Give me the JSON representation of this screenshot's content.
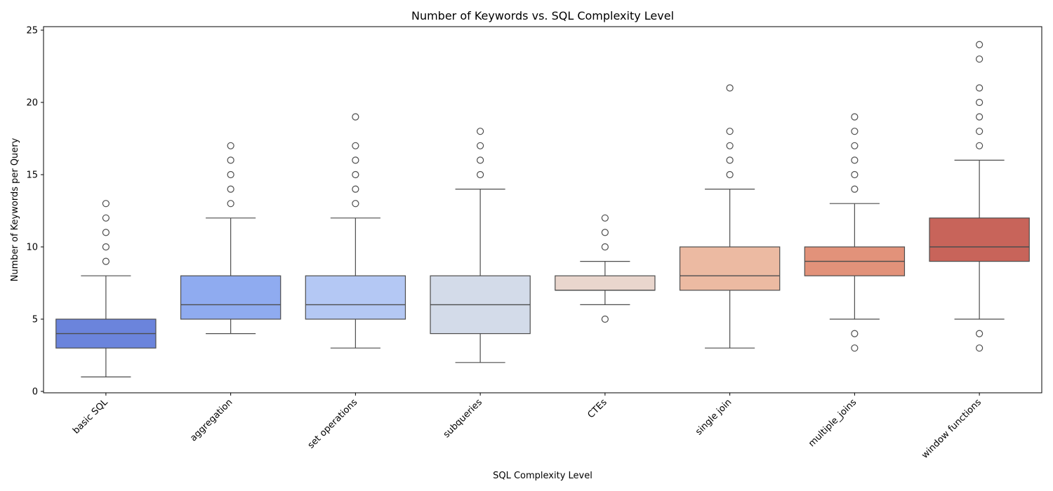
{
  "chart_data": {
    "type": "box",
    "title": "Number of Keywords vs. SQL Complexity Level",
    "xlabel": "SQL Complexity Level",
    "ylabel": "Number of Keywords per Query",
    "ylim": [
      -0.1,
      25.2
    ],
    "yticks": [
      0,
      5,
      10,
      15,
      20,
      25
    ],
    "grid": false,
    "legend": "none",
    "categories": [
      "basic SQL",
      "aggregation",
      "set operations",
      "subqueries",
      "CTEs",
      "single join",
      "multiple_joins",
      "window functions"
    ],
    "boxes": [
      {
        "category": "basic SQL",
        "color": "#6b84dc",
        "whisker_low": 1,
        "q1": 3,
        "median": 4,
        "q3": 5,
        "whisker_high": 8,
        "outliers": [
          9,
          10,
          11,
          12,
          13
        ]
      },
      {
        "category": "aggregation",
        "color": "#8fabf0",
        "whisker_low": 4,
        "q1": 5,
        "median": 6,
        "q3": 8,
        "whisker_high": 12,
        "outliers": [
          13,
          14,
          15,
          16,
          17
        ]
      },
      {
        "category": "set operations",
        "color": "#b4c8f4",
        "whisker_low": 3,
        "q1": 5,
        "median": 6,
        "q3": 8,
        "whisker_high": 12,
        "outliers": [
          13,
          14,
          15,
          16,
          17,
          19
        ]
      },
      {
        "category": "subqueries",
        "color": "#d3dbe9",
        "whisker_low": 2,
        "q1": 4,
        "median": 6,
        "q3": 8,
        "whisker_high": 14,
        "outliers": [
          15,
          16,
          17,
          18
        ]
      },
      {
        "category": "CTEs",
        "color": "#e9d6cd",
        "whisker_low": 6,
        "q1": 7,
        "median": 7,
        "q3": 8,
        "whisker_high": 9,
        "outliers": [
          5,
          10,
          11,
          12
        ]
      },
      {
        "category": "single join",
        "color": "#ecbaa2",
        "whisker_low": 3,
        "q1": 7,
        "median": 8,
        "q3": 10,
        "whisker_high": 14,
        "outliers": [
          15,
          16,
          17,
          18,
          21
        ]
      },
      {
        "category": "multiple_joins",
        "color": "#e2927a",
        "whisker_low": 5,
        "q1": 8,
        "median": 9,
        "q3": 10,
        "whisker_high": 13,
        "outliers": [
          3,
          4,
          14,
          15,
          16,
          17,
          18,
          19
        ]
      },
      {
        "category": "window functions",
        "color": "#c8645a",
        "whisker_low": 5,
        "q1": 9,
        "median": 10,
        "q3": 12,
        "whisker_high": 16,
        "outliers": [
          3,
          4,
          17,
          18,
          19,
          20,
          21,
          23,
          24
        ]
      }
    ]
  }
}
